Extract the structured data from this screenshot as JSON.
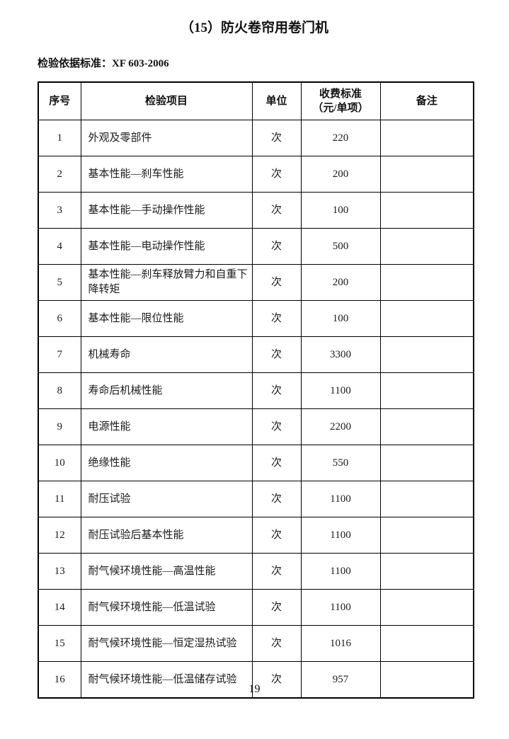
{
  "page": {
    "title": "（15）防火卷帘用卷门机",
    "standard_reference": "检验依据标准：XF 603-2006",
    "page_number": "19"
  },
  "table": {
    "headers": {
      "no": "序号",
      "item": "检验项目",
      "unit": "单位",
      "fee": "收费标准\n（元/单项）",
      "note": "备注"
    },
    "rows": [
      {
        "no": "1",
        "item": "外观及零部件",
        "unit": "次",
        "fee": "220",
        "note": ""
      },
      {
        "no": "2",
        "item": "基本性能—刹车性能",
        "unit": "次",
        "fee": "200",
        "note": ""
      },
      {
        "no": "3",
        "item": "基本性能—手动操作性能",
        "unit": "次",
        "fee": "100",
        "note": ""
      },
      {
        "no": "4",
        "item": "基本性能—电动操作性能",
        "unit": "次",
        "fee": "500",
        "note": ""
      },
      {
        "no": "5",
        "item": "基本性能—刹车释放臂力和自重下降转矩",
        "unit": "次",
        "fee": "200",
        "note": ""
      },
      {
        "no": "6",
        "item": "基本性能—限位性能",
        "unit": "次",
        "fee": "100",
        "note": ""
      },
      {
        "no": "7",
        "item": "机械寿命",
        "unit": "次",
        "fee": "3300",
        "note": ""
      },
      {
        "no": "8",
        "item": "寿命后机械性能",
        "unit": "次",
        "fee": "1100",
        "note": ""
      },
      {
        "no": "9",
        "item": "电源性能",
        "unit": "次",
        "fee": "2200",
        "note": ""
      },
      {
        "no": "10",
        "item": "绝缘性能",
        "unit": "次",
        "fee": "550",
        "note": ""
      },
      {
        "no": "11",
        "item": "耐压试验",
        "unit": "次",
        "fee": "1100",
        "note": ""
      },
      {
        "no": "12",
        "item": "耐压试验后基本性能",
        "unit": "次",
        "fee": "1100",
        "note": ""
      },
      {
        "no": "13",
        "item": "耐气候环境性能—高温性能",
        "unit": "次",
        "fee": "1100",
        "note": ""
      },
      {
        "no": "14",
        "item": "耐气候环境性能—低温试验",
        "unit": "次",
        "fee": "1100",
        "note": ""
      },
      {
        "no": "15",
        "item": "耐气候环境性能—恒定湿热试验",
        "unit": "次",
        "fee": "1016",
        "note": ""
      },
      {
        "no": "16",
        "item": "耐气候环境性能—低温储存试验",
        "unit": "次",
        "fee": "957",
        "note": ""
      }
    ]
  }
}
